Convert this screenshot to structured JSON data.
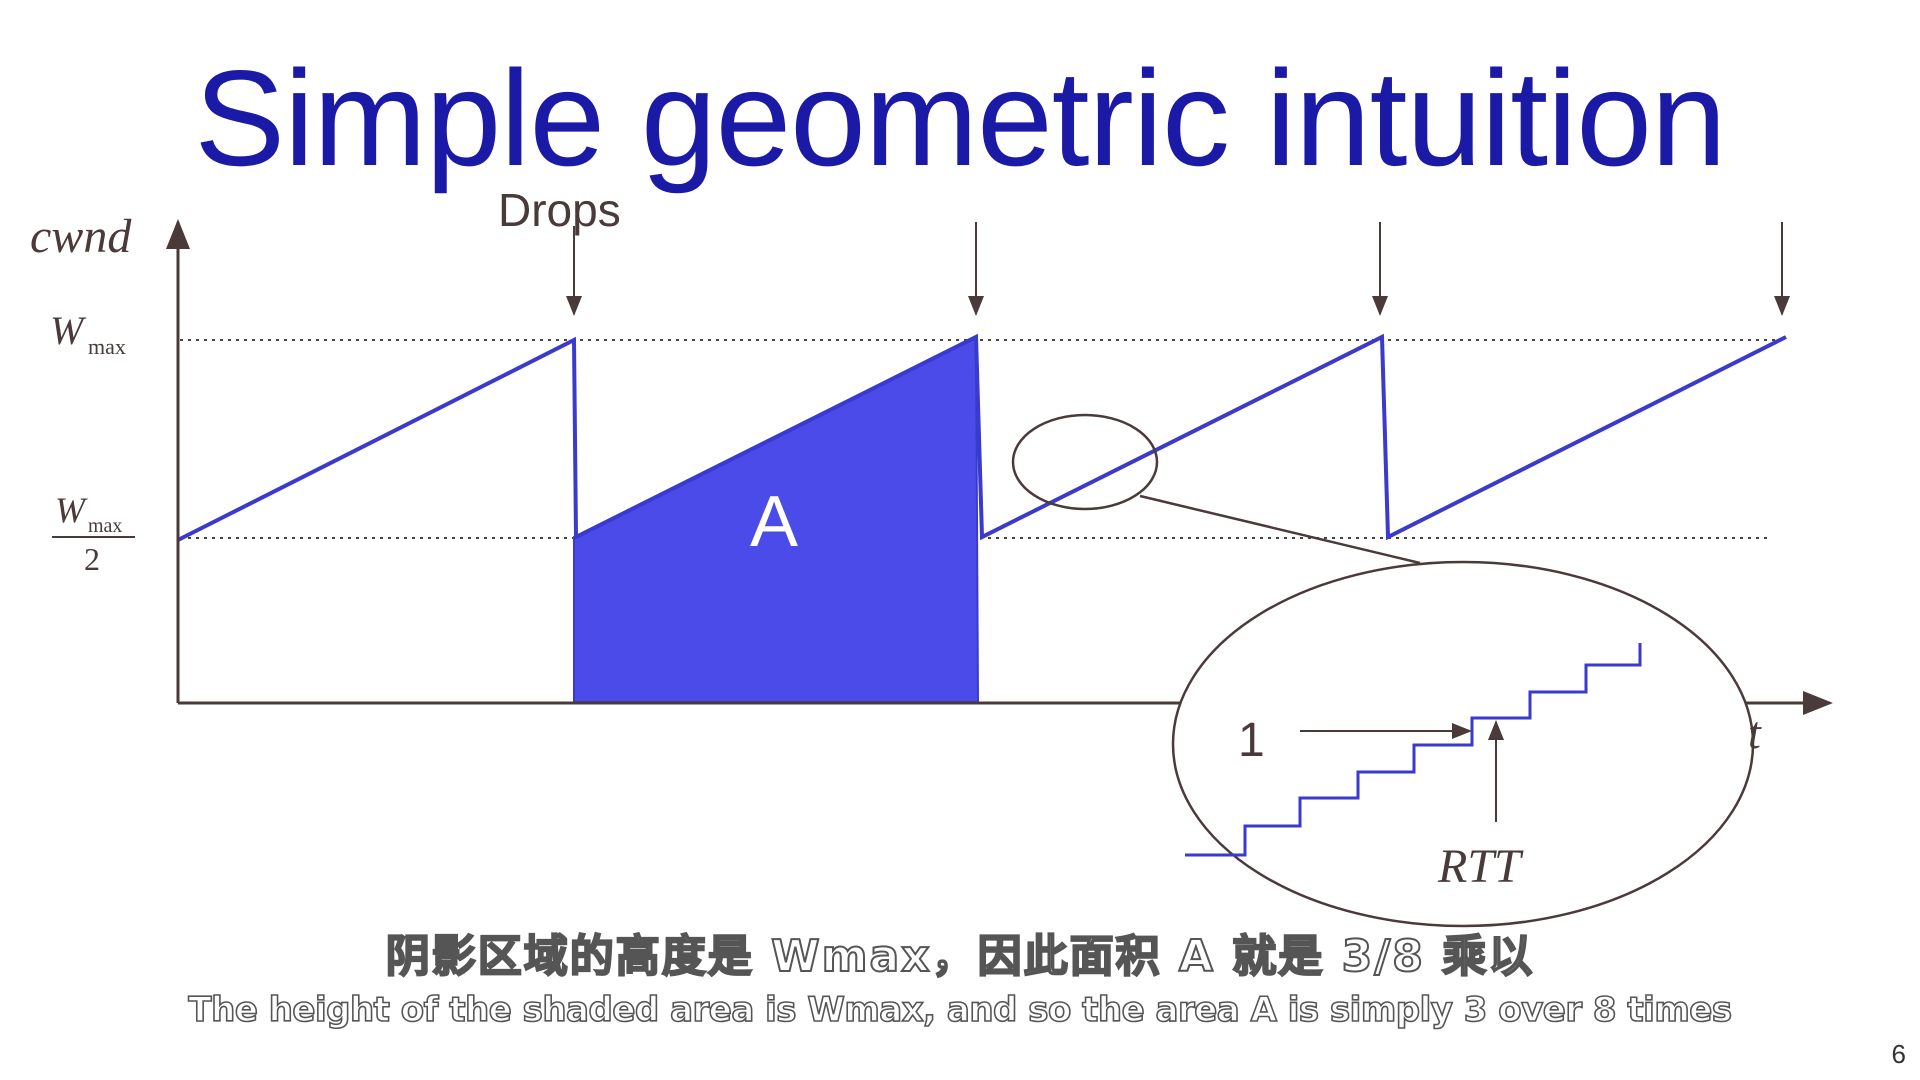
{
  "title": "Simple geometric intuition",
  "diagram": {
    "y_axis_label": "cwnd",
    "x_axis_label": "t",
    "wmax_label": "W",
    "wmax_sub": "max",
    "half_label_top": "W",
    "half_label_sub": "max",
    "half_label_bottom": "2",
    "drops_label": "Drops",
    "area_label": "A",
    "zoom_step_label": "1",
    "zoom_rtt_label": "RTT"
  },
  "colors": {
    "title": "#1a1aa6",
    "sawtooth": "#3a3acc",
    "shade": "#4b4bea",
    "axis": "#4a3a3a"
  },
  "subtitle": {
    "chinese": "阴影区域的高度是 Wmax，因此面积 A 就是 3/8 乘以",
    "english": "The height of the shaded area is Wmax, and so the area A is simply 3 over 8 times"
  },
  "page_number": "6"
}
